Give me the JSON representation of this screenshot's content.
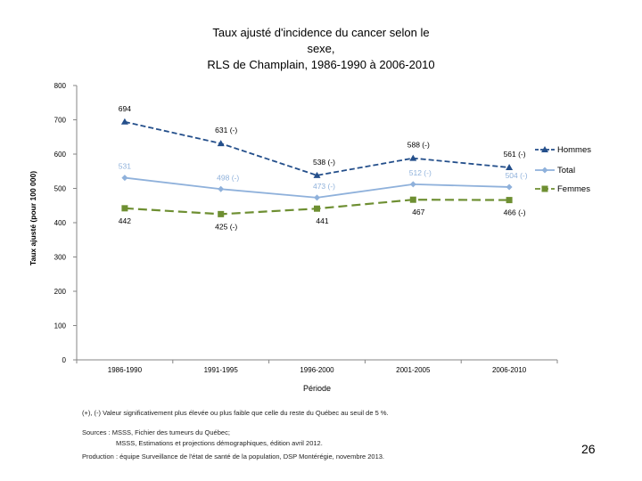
{
  "title_lines": [
    "Taux ajusté d'incidence du cancer selon le",
    "sexe,",
    "RLS de Champlain, 1986-1990 à 2006-2010"
  ],
  "colors": {
    "hommes": "#244f8b",
    "total": "#8fb1db",
    "femmes": "#6e8f32",
    "axis": "#868686",
    "text": "#000000"
  },
  "chart_data": {
    "type": "line",
    "title": "Taux ajusté d'incidence du cancer selon le sexe, RLS de Champlain, 1986-1990 à 2006-2010",
    "xlabel": "Période",
    "ylabel": "Taux ajusté (pour 100 000)",
    "categories": [
      "1986-1990",
      "1991-1995",
      "1996-2000",
      "2001-2005",
      "2006-2010"
    ],
    "ylim": [
      0,
      800
    ],
    "yticks": [
      0,
      100,
      200,
      300,
      400,
      500,
      600,
      700,
      800
    ],
    "grid": false,
    "legend_position": "right",
    "series": [
      {
        "name": "Hommes",
        "key": "hommes",
        "values": [
          694,
          631,
          538,
          588,
          561
        ],
        "labels": [
          "694",
          "631 (-)",
          "538 (-)",
          "588 (-)",
          "561 (-)"
        ],
        "marker": "triangle",
        "dash": "dashed"
      },
      {
        "name": "Total",
        "key": "total",
        "values": [
          531,
          498,
          473,
          512,
          504
        ],
        "labels": [
          "531",
          "498 (-)",
          "473 (-)",
          "512 (-)",
          "504 (-)"
        ],
        "marker": "diamond",
        "dash": "solid"
      },
      {
        "name": "Femmes",
        "key": "femmes",
        "values": [
          442,
          425,
          441,
          467,
          466
        ],
        "labels": [
          "442",
          "425 (-)",
          "441",
          "467",
          "466 (-)"
        ],
        "marker": "square",
        "dash": "longdash"
      }
    ]
  },
  "notes": {
    "significance": "(+), (-) Valeur significativement plus élevée ou plus faible que celle du reste du Québec au seuil de 5 %.",
    "sources_line1": "Sources : MSSS, Fichier des tumeurs du Québec;",
    "sources_line2": "MSSS, Estimations et projections démographiques, édition avril 2012.",
    "production": "Production : équipe Surveillance de l'état de santé de la population, DSP Montérégie, novembre 2013."
  },
  "page_number": "26"
}
